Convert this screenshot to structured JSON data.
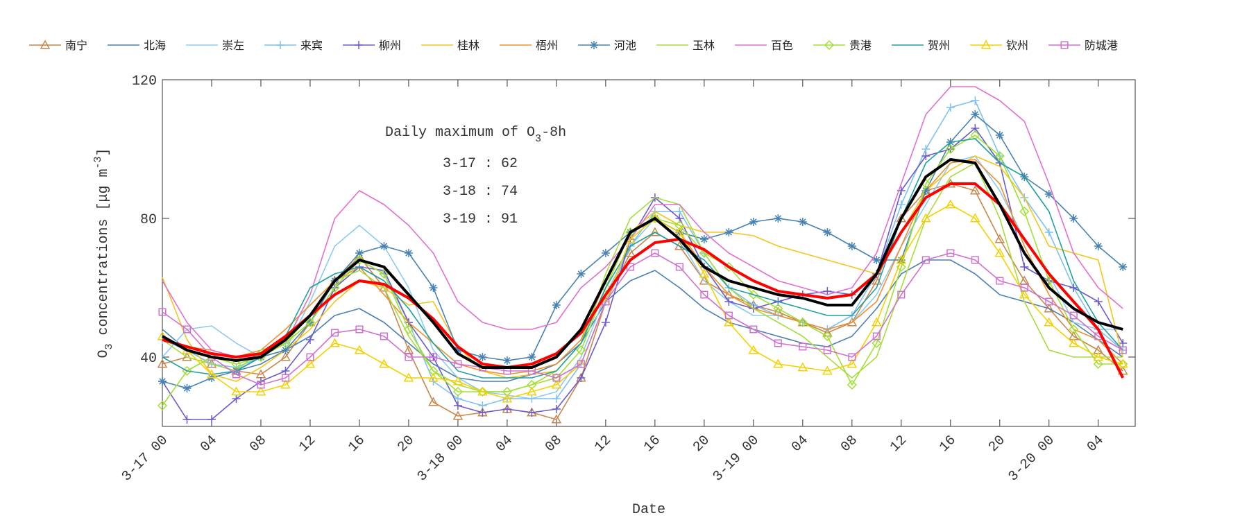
{
  "chart_data": {
    "type": "line",
    "xlabel": "Date",
    "ylabel": [
      "O",
      "3",
      " concentrations [μg m",
      "-3",
      "]"
    ],
    "annotation": {
      "title": [
        "Daily maximum of O",
        "3",
        "-8h"
      ],
      "lines": [
        "3-17 : 62",
        "3-18 : 74",
        "3-19 : 91"
      ]
    },
    "xlim": [
      0,
      79
    ],
    "ylim": [
      20,
      120
    ],
    "xticks": [
      {
        "value": 0,
        "label": "3-17 00"
      },
      {
        "value": 4,
        "label": "04"
      },
      {
        "value": 8,
        "label": "08"
      },
      {
        "value": 12,
        "label": "12"
      },
      {
        "value": 16,
        "label": "16"
      },
      {
        "value": 20,
        "label": "20"
      },
      {
        "value": 24,
        "label": "3-18 00"
      },
      {
        "value": 28,
        "label": "04"
      },
      {
        "value": 32,
        "label": "08"
      },
      {
        "value": 36,
        "label": "12"
      },
      {
        "value": 40,
        "label": "16"
      },
      {
        "value": 44,
        "label": "20"
      },
      {
        "value": 48,
        "label": "3-19 00"
      },
      {
        "value": 52,
        "label": "04"
      },
      {
        "value": 56,
        "label": "08"
      },
      {
        "value": 60,
        "label": "12"
      },
      {
        "value": 64,
        "label": "16"
      },
      {
        "value": 68,
        "label": "20"
      },
      {
        "value": 72,
        "label": "3-20 00"
      },
      {
        "value": 76,
        "label": "04"
      }
    ],
    "yticks": [
      40,
      80,
      120
    ],
    "grid": false,
    "legend": "top",
    "x": [
      0,
      2,
      4,
      6,
      8,
      10,
      12,
      14,
      16,
      18,
      20,
      22,
      24,
      26,
      28,
      30,
      32,
      34,
      36,
      38,
      40,
      42,
      44,
      46,
      48,
      50,
      52,
      54,
      56,
      58,
      60,
      62,
      64,
      66,
      68,
      70,
      72,
      74,
      76,
      78
    ],
    "series": [
      {
        "name": "南宁",
        "color": "#c8864a",
        "marker": "triangle",
        "values": [
          38,
          40,
          38,
          36,
          35,
          40,
          50,
          62,
          69,
          60,
          42,
          27,
          23,
          24,
          25,
          24,
          22,
          34,
          56,
          70,
          76,
          72,
          62,
          58,
          55,
          53,
          50,
          47,
          50,
          62,
          80,
          88,
          90,
          88,
          74,
          62,
          54,
          46,
          42,
          36
        ]
      },
      {
        "name": "北海",
        "color": "#4a7fb5",
        "values": [
          48,
          42,
          38,
          36,
          38,
          42,
          46,
          52,
          54,
          50,
          44,
          38,
          34,
          33,
          33,
          35,
          38,
          44,
          56,
          62,
          65,
          60,
          54,
          50,
          48,
          46,
          44,
          43,
          46,
          54,
          64,
          68,
          68,
          64,
          58,
          56,
          54,
          50,
          45,
          40
        ]
      },
      {
        "name": "崇左",
        "color": "#8ccbf0",
        "values": [
          40,
          48,
          49,
          44,
          40,
          42,
          56,
          72,
          78,
          72,
          60,
          42,
          34,
          30,
          29,
          28,
          30,
          40,
          58,
          72,
          80,
          74,
          62,
          56,
          52,
          52,
          50,
          48,
          50,
          58,
          72,
          84,
          96,
          98,
          88,
          74,
          64,
          50,
          48,
          48
        ]
      },
      {
        "name": "来宾",
        "color": "#7ec0f0",
        "marker": "plus",
        "values": [
          45,
          42,
          38,
          37,
          40,
          44,
          50,
          60,
          68,
          64,
          50,
          33,
          28,
          26,
          28,
          28,
          28,
          38,
          56,
          72,
          82,
          82,
          70,
          60,
          55,
          52,
          50,
          48,
          52,
          64,
          84,
          100,
          112,
          114,
          98,
          86,
          76,
          60,
          48,
          42
        ]
      },
      {
        "name": "柳州",
        "color": "#6a5acd",
        "marker": "plus",
        "values": [
          33,
          22,
          22,
          28,
          33,
          36,
          45,
          60,
          66,
          65,
          50,
          40,
          26,
          24,
          25,
          24,
          25,
          34,
          50,
          74,
          86,
          80,
          66,
          56,
          54,
          56,
          58,
          59,
          58,
          64,
          88,
          98,
          100,
          106,
          96,
          66,
          62,
          60,
          56,
          44
        ]
      },
      {
        "name": "桂林",
        "color": "#f5c518",
        "values": [
          63,
          45,
          35,
          33,
          37,
          42,
          48,
          56,
          62,
          60,
          55,
          56,
          43,
          36,
          34,
          35,
          36,
          44,
          60,
          76,
          82,
          78,
          76,
          76,
          75,
          72,
          70,
          68,
          66,
          64,
          76,
          88,
          94,
          98,
          95,
          86,
          72,
          70,
          68,
          40
        ]
      },
      {
        "name": "梧州",
        "color": "#f0902a",
        "values": [
          45,
          43,
          42,
          40,
          42,
          48,
          55,
          62,
          66,
          58,
          50,
          44,
          38,
          36,
          35,
          36,
          38,
          45,
          62,
          76,
          80,
          76,
          66,
          58,
          54,
          52,
          50,
          48,
          50,
          56,
          72,
          88,
          96,
          97,
          90,
          72,
          58,
          48,
          45,
          38
        ]
      },
      {
        "name": "河池",
        "color": "#4682b4",
        "marker": "star",
        "values": [
          33,
          31,
          34,
          36,
          40,
          42,
          50,
          62,
          70,
          72,
          70,
          60,
          42,
          40,
          39,
          40,
          55,
          64,
          70,
          76,
          80,
          76,
          74,
          76,
          79,
          80,
          79,
          76,
          72,
          68,
          68,
          88,
          102,
          110,
          104,
          92,
          87,
          80,
          72,
          66
        ]
      },
      {
        "name": "玉林",
        "color": "#a8dc3c",
        "values": [
          45,
          40,
          38,
          36,
          42,
          44,
          52,
          62,
          65,
          60,
          46,
          36,
          32,
          30,
          30,
          32,
          36,
          44,
          64,
          80,
          86,
          84,
          70,
          60,
          54,
          50,
          46,
          40,
          34,
          40,
          60,
          80,
          92,
          96,
          80,
          56,
          42,
          40,
          40,
          40
        ]
      },
      {
        "name": "百色",
        "color": "#e070d0",
        "values": [
          62,
          50,
          42,
          40,
          40,
          44,
          58,
          80,
          88,
          84,
          78,
          70,
          56,
          50,
          48,
          48,
          50,
          60,
          66,
          74,
          84,
          84,
          76,
          70,
          66,
          62,
          60,
          58,
          60,
          70,
          90,
          110,
          118,
          118,
          114,
          108,
          90,
          70,
          60,
          54
        ]
      },
      {
        "name": "贵港",
        "color": "#a0e030",
        "marker": "diamond",
        "values": [
          26,
          36,
          40,
          38,
          40,
          44,
          50,
          60,
          68,
          64,
          48,
          36,
          30,
          30,
          30,
          32,
          34,
          42,
          60,
          76,
          80,
          78,
          70,
          66,
          58,
          54,
          50,
          46,
          32,
          44,
          66,
          90,
          100,
          104,
          98,
          82,
          62,
          48,
          38,
          38
        ]
      },
      {
        "name": "贺州",
        "color": "#20a0a0",
        "values": [
          40,
          36,
          35,
          36,
          40,
          46,
          60,
          64,
          66,
          62,
          54,
          44,
          36,
          34,
          34,
          34,
          36,
          44,
          60,
          72,
          76,
          72,
          68,
          60,
          58,
          56,
          54,
          52,
          52,
          60,
          80,
          96,
          102,
          103,
          96,
          92,
          82,
          62,
          50,
          42
        ]
      },
      {
        "name": "钦州",
        "color": "#f5d000",
        "marker": "triangle",
        "values": [
          46,
          42,
          35,
          30,
          30,
          32,
          38,
          44,
          42,
          38,
          34,
          34,
          33,
          30,
          28,
          30,
          32,
          38,
          56,
          74,
          80,
          76,
          64,
          50,
          42,
          38,
          37,
          36,
          38,
          50,
          68,
          80,
          84,
          80,
          70,
          58,
          50,
          44,
          40,
          38
        ]
      },
      {
        "name": "防城港",
        "color": "#d070d0",
        "marker": "square",
        "values": [
          53,
          48,
          40,
          35,
          32,
          34,
          40,
          47,
          48,
          46,
          40,
          40,
          38,
          37,
          36,
          36,
          34,
          38,
          56,
          66,
          70,
          66,
          58,
          52,
          48,
          44,
          43,
          42,
          40,
          46,
          58,
          68,
          70,
          68,
          62,
          60,
          56,
          52,
          46,
          42
        ]
      },
      {
        "color": "#ff0000",
        "linewidth": 4,
        "values": [
          45,
          43,
          41,
          40,
          41,
          46,
          52,
          58,
          62,
          61,
          57,
          51,
          43,
          38,
          37,
          38,
          41,
          47,
          58,
          68,
          73,
          74,
          71,
          66,
          62,
          59,
          58,
          57,
          58,
          64,
          76,
          86,
          90,
          90,
          84,
          74,
          64,
          56,
          48,
          34
        ]
      },
      {
        "color": "#000000",
        "linewidth": 4,
        "values": [
          46,
          42,
          40,
          39,
          40,
          45,
          52,
          62,
          68,
          66,
          58,
          50,
          41,
          37,
          37,
          37,
          40,
          48,
          62,
          76,
          80,
          74,
          66,
          62,
          60,
          58,
          57,
          55,
          55,
          64,
          80,
          92,
          97,
          96,
          84,
          70,
          60,
          54,
          50,
          48
        ]
      }
    ]
  }
}
